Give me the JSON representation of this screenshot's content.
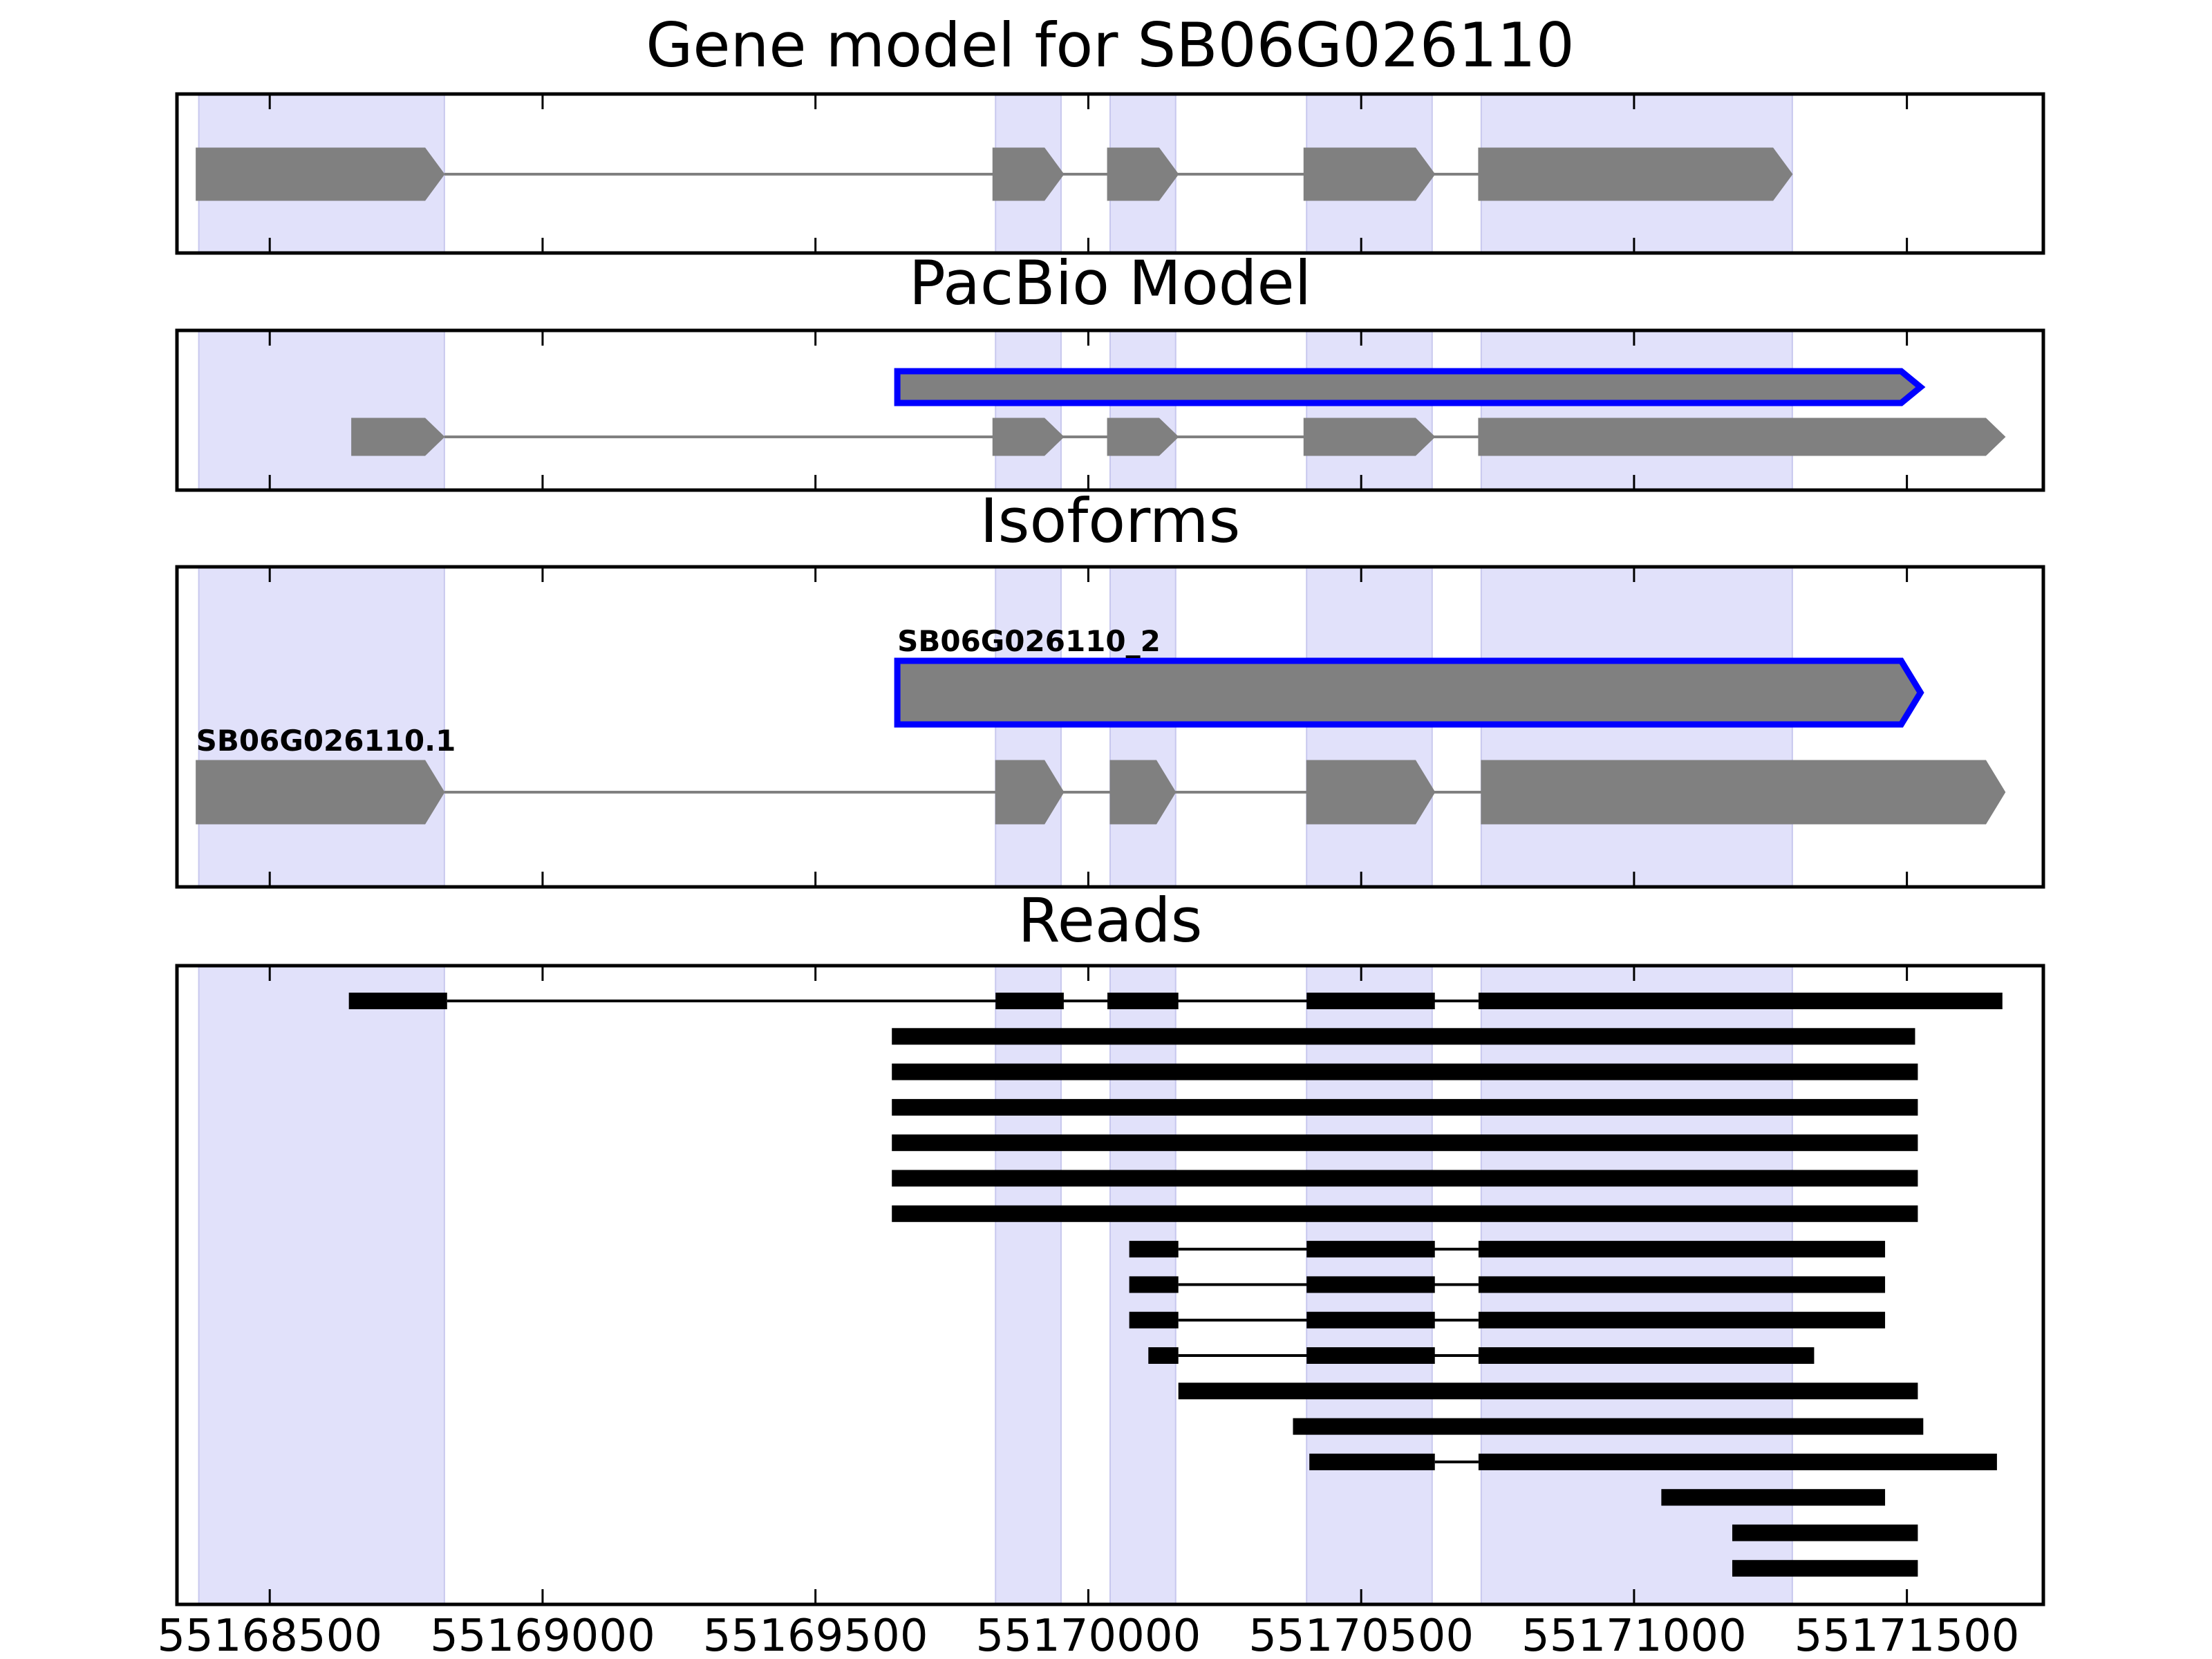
{
  "chart_data": {
    "type": "gene-model-tracks",
    "xlim": [
      55168330,
      55171750
    ],
    "x_ticks": [
      55168500,
      55169000,
      55169500,
      55170000,
      55170500,
      55171000,
      55171500
    ],
    "x_tick_labels": [
      "55168500",
      "55169000",
      "55169500",
      "55170000",
      "55170500",
      "55171000",
      "55171500"
    ],
    "colors": {
      "exon_fill": "#808080",
      "intron_line": "#808080",
      "highlight_outline": "#0000ff",
      "shaded_region": "#e1e1fa",
      "read": "#000000"
    },
    "shaded_regions": [
      [
        55168370,
        55168820
      ],
      [
        55169830,
        55169950
      ],
      [
        55170040,
        55170160
      ],
      [
        55170400,
        55170630
      ],
      [
        55170720,
        55171290
      ]
    ],
    "panels": [
      {
        "title": "Gene model for SB06G026110",
        "kind": "models",
        "models": [
          {
            "label": "",
            "highlight": false,
            "exons": [
              [
                55168365,
                55168820
              ],
              [
                55169825,
                55169955
              ],
              [
                55170035,
                55170165
              ],
              [
                55170395,
                55170635
              ],
              [
                55170715,
                55171290
              ]
            ]
          }
        ]
      },
      {
        "title": "PacBio Model",
        "kind": "models",
        "models": [
          {
            "label": "",
            "highlight": true,
            "exons": [
              [
                55169650,
                55171525
              ]
            ]
          },
          {
            "label": "",
            "highlight": false,
            "exons": [
              [
                55168650,
                55168820
              ],
              [
                55169825,
                55169955
              ],
              [
                55170035,
                55170165
              ],
              [
                55170395,
                55170635
              ],
              [
                55170715,
                55171680
              ]
            ]
          }
        ]
      },
      {
        "title": "Isoforms",
        "kind": "models",
        "models": [
          {
            "label": "SB06G026110_2",
            "highlight": true,
            "exons": [
              [
                55169650,
                55171525
              ]
            ]
          },
          {
            "label": "SB06G026110.1",
            "highlight": false,
            "exons": [
              [
                55168365,
                55168820
              ],
              [
                55169830,
                55169955
              ],
              [
                55170040,
                55170160
              ],
              [
                55170400,
                55170635
              ],
              [
                55170720,
                55171680
              ]
            ]
          }
        ]
      },
      {
        "title": "Reads",
        "kind": "reads",
        "reads": [
          [
            [
              55168645,
              55168825
            ],
            [
              55169830,
              55169955
            ],
            [
              55170035,
              55170165
            ],
            [
              55170400,
              55170635
            ],
            [
              55170715,
              55171675
            ]
          ],
          [
            [
              55169640,
              55171515
            ]
          ],
          [
            [
              55169640,
              55171520
            ]
          ],
          [
            [
              55169640,
              55171520
            ]
          ],
          [
            [
              55169640,
              55171520
            ]
          ],
          [
            [
              55169640,
              55171520
            ]
          ],
          [
            [
              55169640,
              55171520
            ]
          ],
          [
            [
              55170075,
              55170165
            ],
            [
              55170400,
              55170635
            ],
            [
              55170715,
              55171460
            ]
          ],
          [
            [
              55170075,
              55170165
            ],
            [
              55170400,
              55170635
            ],
            [
              55170715,
              55171460
            ]
          ],
          [
            [
              55170075,
              55170165
            ],
            [
              55170400,
              55170635
            ],
            [
              55170715,
              55171460
            ]
          ],
          [
            [
              55170110,
              55170165
            ],
            [
              55170400,
              55170635
            ],
            [
              55170715,
              55171330
            ]
          ],
          [
            [
              55170165,
              55171520
            ]
          ],
          [
            [
              55170375,
              55171530
            ]
          ],
          [
            [
              55170405,
              55170635
            ],
            [
              55170715,
              55171665
            ]
          ],
          [
            [
              55171050,
              55171460
            ]
          ],
          [
            [
              55171180,
              55171520
            ]
          ],
          [
            [
              55171180,
              55171520
            ]
          ]
        ]
      }
    ]
  }
}
